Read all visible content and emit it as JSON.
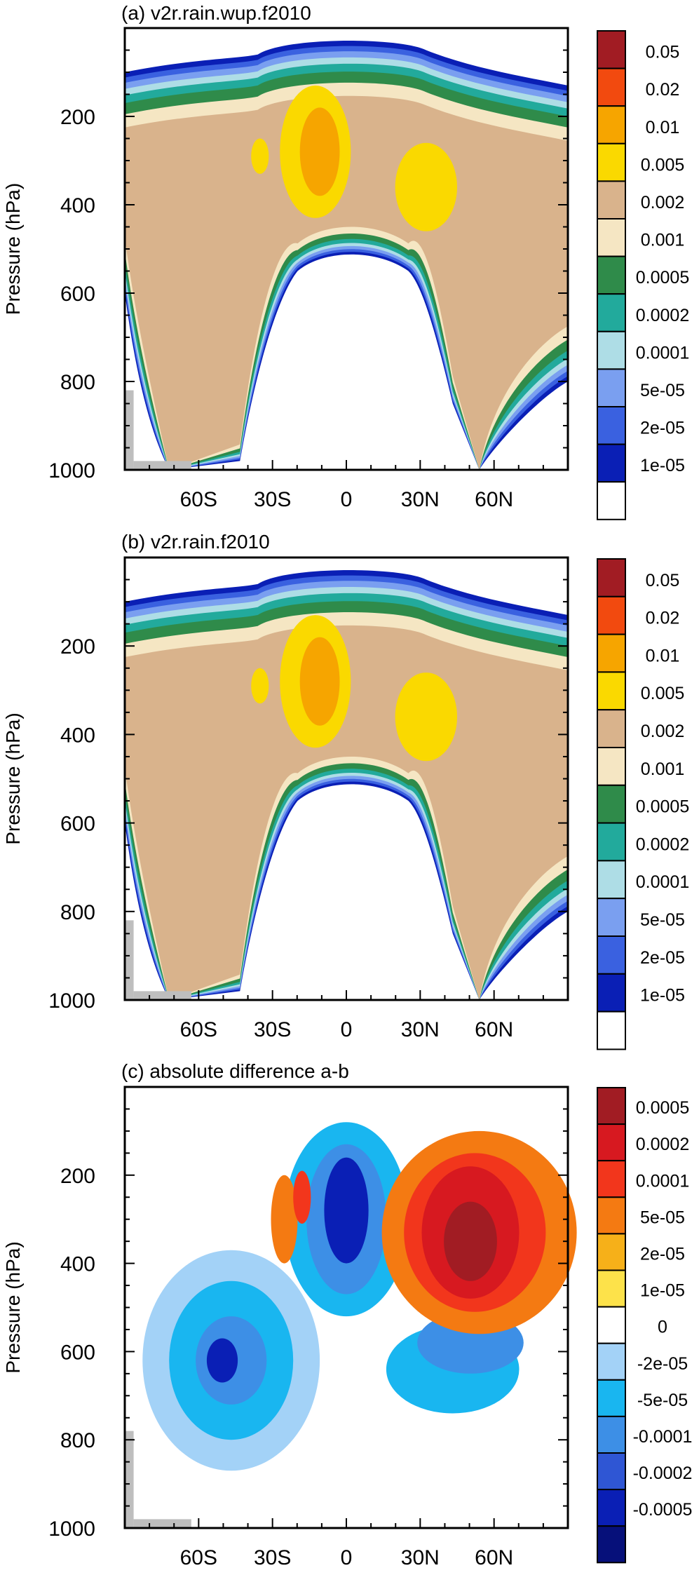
{
  "chart_data": [
    {
      "type": "heatmap",
      "title": "(a) v2r.rain.wup.f2010",
      "ylabel": "Pressure (hPa)",
      "x_ticks": [
        "60S",
        "30S",
        "0",
        "30N",
        "60N"
      ],
      "x_tick_values": [
        -60,
        -30,
        0,
        30,
        60
      ],
      "xlim": [
        -90,
        90
      ],
      "y_ticks": [
        "200",
        "400",
        "600",
        "800",
        "1000"
      ],
      "y_tick_values": [
        200,
        400,
        600,
        800,
        1000
      ],
      "ylim": [
        1000,
        0
      ],
      "colorbar": {
        "labels": [
          "0.05",
          "0.02",
          "0.01",
          "0.005",
          "0.002",
          "0.001",
          "0.0005",
          "0.0002",
          "0.0001",
          "5e-05",
          "2e-05",
          "1e-05"
        ],
        "colors": [
          "#a11c23",
          "#f24a0f",
          "#f6a500",
          "#fad900",
          "#d9b38c",
          "#f5e6c3",
          "#2f8b4a",
          "#22aa9c",
          "#aedde6",
          "#7a9ff0",
          "#3a61e0",
          "#0a1fb5",
          "#ffffff"
        ]
      }
    },
    {
      "type": "heatmap",
      "title": "(b) v2r.rain.f2010",
      "ylabel": "Pressure (hPa)",
      "x_ticks": [
        "60S",
        "30S",
        "0",
        "30N",
        "60N"
      ],
      "x_tick_values": [
        -60,
        -30,
        0,
        30,
        60
      ],
      "xlim": [
        -90,
        90
      ],
      "y_ticks": [
        "200",
        "400",
        "600",
        "800",
        "1000"
      ],
      "y_tick_values": [
        200,
        400,
        600,
        800,
        1000
      ],
      "ylim": [
        1000,
        0
      ],
      "colorbar": {
        "labels": [
          "0.05",
          "0.02",
          "0.01",
          "0.005",
          "0.002",
          "0.001",
          "0.0005",
          "0.0002",
          "0.0001",
          "5e-05",
          "2e-05",
          "1e-05"
        ],
        "colors": [
          "#a11c23",
          "#f24a0f",
          "#f6a500",
          "#fad900",
          "#d9b38c",
          "#f5e6c3",
          "#2f8b4a",
          "#22aa9c",
          "#aedde6",
          "#7a9ff0",
          "#3a61e0",
          "#0a1fb5",
          "#ffffff"
        ]
      }
    },
    {
      "type": "heatmap",
      "title": "(c) absolute difference a-b",
      "ylabel": "Pressure (hPa)",
      "x_ticks": [
        "60S",
        "30S",
        "0",
        "30N",
        "60N"
      ],
      "x_tick_values": [
        -60,
        -30,
        0,
        30,
        60
      ],
      "xlim": [
        -90,
        90
      ],
      "y_ticks": [
        "200",
        "400",
        "600",
        "800",
        "1000"
      ],
      "y_tick_values": [
        200,
        400,
        600,
        800,
        1000
      ],
      "ylim": [
        1000,
        0
      ],
      "colorbar": {
        "labels": [
          "0.0005",
          "0.0002",
          "0.0001",
          "5e-05",
          "2e-05",
          "1e-05",
          "0",
          "-2e-05",
          "-5e-05",
          "-0.0001",
          "-0.0002",
          "-0.0005"
        ],
        "colors": [
          "#a11c23",
          "#d71920",
          "#f2361c",
          "#f47a12",
          "#f6b019",
          "#fde24a",
          "#ffffff",
          "#a3d2f7",
          "#19b6f0",
          "#3d8fe6",
          "#2f56d4",
          "#0a1fb5",
          "#06107a"
        ]
      }
    }
  ]
}
